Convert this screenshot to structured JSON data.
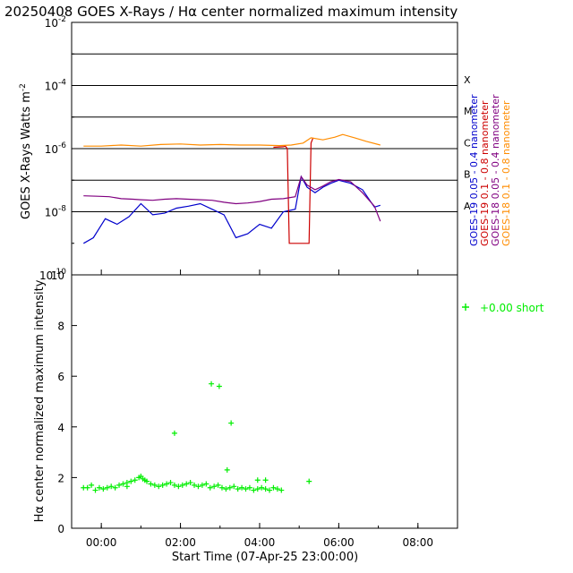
{
  "chart_data": [
    {
      "type": "line",
      "title": "20250408 GOES X-Rays / Hα center normalized maximum intensity",
      "ylabel": "GOES X-Rays Watts m",
      "ylabel_sup": "-2",
      "yscale": "log",
      "ylim": [
        1e-10,
        0.01
      ],
      "xlim": [
        -0.75,
        9.0
      ],
      "y_ticks": [
        {
          "value": 1e-10,
          "base": "10",
          "exp": "-10"
        },
        {
          "value": 1e-08,
          "base": "10",
          "exp": "-8"
        },
        {
          "value": 1e-06,
          "base": "10",
          "exp": "-6"
        },
        {
          "value": 0.0001,
          "base": "10",
          "exp": "-4"
        },
        {
          "value": 0.01,
          "base": "10",
          "exp": "-2"
        }
      ],
      "flare_classes": [
        {
          "label": "A",
          "value": 1e-08
        },
        {
          "label": "B",
          "value": 1e-07
        },
        {
          "label": "C",
          "value": 1e-06
        },
        {
          "label": "M",
          "value": 1e-05
        },
        {
          "label": "X",
          "value": 0.0001
        }
      ],
      "threshold_lines": [
        1e-08,
        1e-07,
        1e-06,
        1e-05,
        0.0001,
        0.001
      ],
      "series": [
        {
          "name": "GOES-19 0.05 - 0.4 nanometer",
          "color": "#0000cc",
          "x": [
            -0.45,
            -0.2,
            0.1,
            0.4,
            0.7,
            1.0,
            1.3,
            1.6,
            1.9,
            2.2,
            2.5,
            2.8,
            3.1,
            3.4,
            3.7,
            4.0,
            4.3,
            4.6,
            4.9,
            5.05,
            5.2,
            5.4,
            5.6,
            5.8,
            6.0,
            6.3,
            6.6,
            6.9,
            7.05
          ],
          "values": [
            1e-09,
            1.5e-09,
            6e-09,
            4e-09,
            7e-09,
            1.8e-08,
            8e-09,
            9e-09,
            1.3e-08,
            1.5e-08,
            1.8e-08,
            1.2e-08,
            8e-09,
            1.5e-09,
            2e-09,
            4e-09,
            3e-09,
            1e-08,
            1.2e-08,
            1.3e-07,
            6e-08,
            4e-08,
            6e-08,
            8e-08,
            1e-07,
            8e-08,
            5e-08,
            1.4e-08,
            1.6e-08
          ]
        },
        {
          "name": "GOES-19 0.1 - 0.8 nanometer",
          "color": "#cc0000",
          "x": [
            4.35,
            4.6,
            4.65,
            4.7,
            4.75,
            5.0,
            5.25,
            5.3,
            5.35
          ],
          "values": [
            1.1e-06,
            1.15e-06,
            1.2e-06,
            1e-06,
            1e-09,
            1e-09,
            1e-09,
            1.5e-06,
            2.2e-06
          ]
        },
        {
          "name": "GOES-18 0.05 - 0.4 nanometer",
          "color": "#800080",
          "x": [
            -0.45,
            -0.1,
            0.2,
            0.5,
            0.8,
            1.0,
            1.3,
            1.6,
            1.9,
            2.2,
            2.5,
            2.8,
            3.1,
            3.4,
            3.7,
            4.0,
            4.3,
            4.6,
            4.9,
            5.05,
            5.2,
            5.4,
            5.6,
            5.8,
            6.0,
            6.3,
            6.6,
            6.9,
            7.05
          ],
          "values": [
            3.2e-08,
            3.1e-08,
            3e-08,
            2.6e-08,
            2.5e-08,
            2.4e-08,
            2.3e-08,
            2.5e-08,
            2.6e-08,
            2.5e-08,
            2.4e-08,
            2.3e-08,
            2e-08,
            1.8e-08,
            1.9e-08,
            2.1e-08,
            2.5e-08,
            2.6e-08,
            3e-08,
            1.3e-07,
            7e-08,
            5e-08,
            6.5e-08,
            9e-08,
            1.05e-07,
            9e-08,
            4e-08,
            1.5e-08,
            5e-09
          ]
        },
        {
          "name": "GOES-18 0.1 - 0.8 nanometer",
          "color": "#ff8c00",
          "x": [
            -0.45,
            0.0,
            0.5,
            1.0,
            1.5,
            2.0,
            2.5,
            3.0,
            3.5,
            4.0,
            4.5,
            4.8,
            5.1,
            5.3,
            5.6,
            5.9,
            6.1,
            6.4,
            6.7,
            7.05
          ],
          "values": [
            1.2e-06,
            1.2e-06,
            1.3e-06,
            1.2e-06,
            1.35e-06,
            1.4e-06,
            1.3e-06,
            1.35e-06,
            1.3e-06,
            1.3e-06,
            1.25e-06,
            1.3e-06,
            1.5e-06,
            2.2e-06,
            1.9e-06,
            2.3e-06,
            2.8e-06,
            2.2e-06,
            1.7e-06,
            1.3e-06
          ]
        }
      ]
    },
    {
      "type": "scatter",
      "ylabel": "Hα center normalized maximum intensity",
      "xlabel": "Start Time (07-Apr-25 23:00:00)",
      "ylim": [
        0,
        10
      ],
      "xlim": [
        -0.75,
        9.0
      ],
      "y_ticks": [
        0,
        2,
        4,
        6,
        8,
        10
      ],
      "x_ticks": [
        {
          "value": 0,
          "label": "00:00"
        },
        {
          "value": 2,
          "label": "02:00"
        },
        {
          "value": 4,
          "label": "04:00"
        },
        {
          "value": 6,
          "label": "06:00"
        },
        {
          "value": 8,
          "label": "08:00"
        }
      ],
      "series": [
        {
          "name": "+0.00 short",
          "color": "#00ee00",
          "marker": "+",
          "x": [
            -0.45,
            -0.35,
            -0.25,
            -0.15,
            -0.05,
            0.05,
            0.15,
            0.25,
            0.35,
            0.45,
            0.55,
            0.65,
            0.75,
            0.85,
            0.95,
            1.05,
            1.15,
            1.25,
            1.35,
            1.45,
            1.55,
            1.65,
            1.75,
            1.85,
            1.95,
            2.05,
            2.15,
            2.25,
            2.35,
            2.45,
            2.55,
            2.65,
            2.75,
            2.85,
            2.95,
            3.05,
            3.15,
            3.25,
            3.35,
            3.45,
            3.55,
            3.65,
            3.75,
            3.85,
            3.95,
            4.05,
            4.15,
            4.25,
            4.35,
            4.45,
            4.55,
            1.85,
            2.78,
            2.98,
            3.28,
            3.18,
            3.95,
            4.15,
            5.25,
            0.65,
            1.0,
            1.1
          ],
          "values": [
            1.6,
            1.6,
            1.7,
            1.5,
            1.6,
            1.55,
            1.6,
            1.65,
            1.6,
            1.7,
            1.75,
            1.8,
            1.85,
            1.9,
            2.0,
            1.95,
            1.85,
            1.75,
            1.7,
            1.65,
            1.7,
            1.75,
            1.8,
            1.7,
            1.65,
            1.7,
            1.75,
            1.8,
            1.7,
            1.65,
            1.7,
            1.75,
            1.6,
            1.65,
            1.7,
            1.6,
            1.55,
            1.6,
            1.65,
            1.55,
            1.6,
            1.55,
            1.6,
            1.5,
            1.55,
            1.6,
            1.55,
            1.5,
            1.6,
            1.55,
            1.5,
            3.75,
            5.7,
            5.6,
            4.15,
            2.3,
            1.9,
            1.9,
            1.85,
            1.65,
            2.05,
            1.9
          ]
        }
      ]
    }
  ]
}
